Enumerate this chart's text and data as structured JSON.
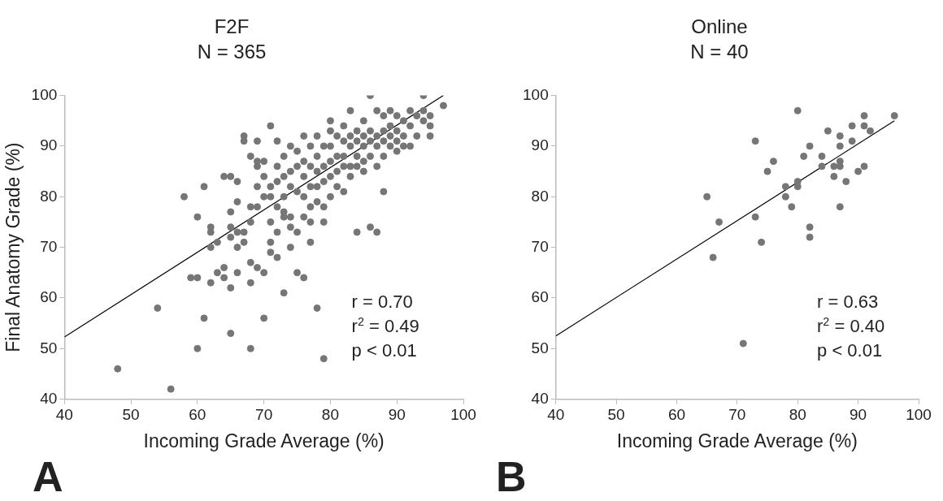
{
  "chart_data": [
    {
      "type": "scatter",
      "title": "F2F",
      "subtitle": "N = 365",
      "xlabel": "Incoming Grade Average (%)",
      "ylabel": "Final Anatomy Grade (%)",
      "xlim": [
        40,
        100
      ],
      "xticks": [
        40,
        50,
        60,
        70,
        80,
        90,
        100
      ],
      "ylim": [
        40,
        100
      ],
      "yticks": [
        40,
        50,
        60,
        70,
        80,
        90,
        100
      ],
      "grid": false,
      "legend": false,
      "marker": "circle",
      "annotations": [
        "r = 0.70",
        "r$^{2}$ = 0.49",
        "p < 0.01",
        "A"
      ],
      "series": [
        {
          "type": "scatter",
          "color": "#767676",
          "x": [
            48,
            54,
            56,
            58,
            59,
            60,
            60,
            60,
            61,
            61,
            62,
            62,
            62,
            62,
            63,
            63,
            64,
            64,
            64,
            65,
            65,
            65,
            65,
            65,
            65,
            66,
            66,
            66,
            66,
            66,
            67,
            67,
            67,
            67,
            68,
            68,
            68,
            68,
            68,
            68,
            69,
            69,
            69,
            69,
            69,
            69,
            70,
            70,
            70,
            70,
            70,
            71,
            71,
            71,
            71,
            71,
            71,
            72,
            72,
            72,
            72,
            72,
            72,
            73,
            73,
            73,
            73,
            73,
            73,
            74,
            74,
            74,
            74,
            74,
            74,
            75,
            75,
            75,
            75,
            75,
            76,
            76,
            76,
            76,
            76,
            76,
            77,
            77,
            77,
            77,
            77,
            77,
            78,
            78,
            78,
            78,
            78,
            78,
            79,
            79,
            79,
            79,
            79,
            79,
            80,
            80,
            80,
            80,
            80,
            80,
            81,
            81,
            81,
            81,
            82,
            82,
            82,
            82,
            82,
            83,
            83,
            83,
            83,
            83,
            84,
            84,
            84,
            84,
            84,
            85,
            85,
            85,
            85,
            85,
            86,
            86,
            86,
            86,
            86,
            87,
            87,
            87,
            87,
            87,
            88,
            88,
            88,
            88,
            88,
            89,
            89,
            89,
            89,
            90,
            90,
            90,
            90,
            91,
            91,
            91,
            92,
            92,
            92,
            93,
            93,
            94,
            94,
            94,
            95,
            95,
            95,
            97
          ],
          "values": [
            46,
            58,
            42,
            80,
            64,
            76,
            50,
            64,
            82,
            56,
            74,
            73,
            70,
            63,
            71,
            65,
            84,
            66,
            64,
            84,
            77,
            74,
            72,
            62,
            53,
            83,
            79,
            73,
            70,
            65,
            92,
            91,
            73,
            71,
            88,
            78,
            75,
            67,
            63,
            50,
            91,
            87,
            86,
            82,
            78,
            66,
            87,
            84,
            80,
            65,
            56,
            94,
            82,
            80,
            75,
            71,
            69,
            91,
            86,
            83,
            78,
            73,
            68,
            88,
            84,
            80,
            77,
            76,
            61,
            90,
            85,
            82,
            76,
            74,
            70,
            89,
            86,
            81,
            73,
            65,
            92,
            87,
            84,
            80,
            76,
            64,
            90,
            86,
            82,
            78,
            75,
            71,
            92,
            88,
            85,
            82,
            79,
            58,
            90,
            86,
            83,
            78,
            75,
            48,
            95,
            93,
            90,
            87,
            84,
            80,
            92,
            88,
            85,
            82,
            94,
            91,
            88,
            86,
            81,
            97,
            92,
            90,
            86,
            84,
            93,
            91,
            88,
            86,
            73,
            95,
            92,
            90,
            87,
            85,
            100,
            93,
            91,
            88,
            74,
            97,
            92,
            90,
            86,
            73,
            96,
            93,
            91,
            88,
            81,
            97,
            94,
            92,
            90,
            96,
            93,
            91,
            89,
            95,
            92,
            90,
            97,
            94,
            90,
            96,
            92,
            100,
            97,
            95,
            96,
            94,
            92,
            98
          ]
        },
        {
          "type": "line",
          "color": "#000000",
          "marker": "none",
          "line_style": "solid",
          "x": [
            40,
            97
          ],
          "values": [
            52.3,
            100
          ]
        }
      ]
    },
    {
      "type": "scatter",
      "title": "Online",
      "subtitle": "N = 40",
      "xlabel": "Incoming Grade Average (%)",
      "xlim": [
        40,
        100
      ],
      "xticks": [
        40,
        50,
        60,
        70,
        80,
        90,
        100
      ],
      "ylim": [
        40,
        100
      ],
      "yticks": [
        40,
        50,
        60,
        70,
        80,
        90,
        100
      ],
      "grid": false,
      "legend": false,
      "marker": "circle",
      "annotations": [
        "r = 0.63",
        "r$^{2}$ = 0.40",
        "p < 0.01",
        "B"
      ],
      "series": [
        {
          "type": "scatter",
          "color": "#767676",
          "x": [
            65,
            66,
            67,
            71,
            73,
            73,
            74,
            75,
            76,
            78,
            78,
            79,
            80,
            80,
            80,
            81,
            82,
            82,
            82,
            84,
            84,
            85,
            86,
            86,
            87,
            87,
            87,
            87,
            87,
            88,
            89,
            89,
            90,
            91,
            91,
            91,
            92,
            96
          ],
          "values": [
            80,
            68,
            75,
            51,
            91,
            76,
            71,
            85,
            87,
            82,
            80,
            78,
            97,
            83,
            82,
            88,
            90,
            74,
            72,
            88,
            86,
            93,
            84,
            86,
            92,
            90,
            87,
            86,
            78,
            83,
            94,
            91,
            85,
            96,
            94,
            86,
            93,
            96
          ]
        },
        {
          "type": "line",
          "color": "#000000",
          "marker": "none",
          "line_style": "solid",
          "x": [
            40,
            96
          ],
          "values": [
            52.5,
            95
          ]
        }
      ]
    }
  ]
}
